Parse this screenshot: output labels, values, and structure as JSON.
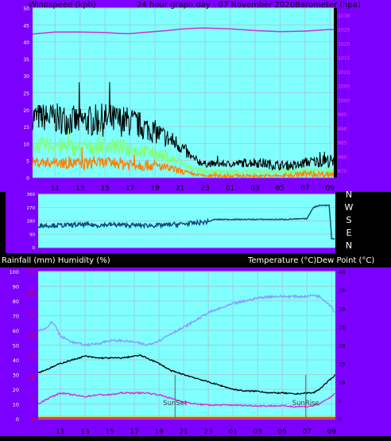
{
  "colors": {
    "bg": "#000000",
    "side": "#7c00ff",
    "plot": "#80ffff",
    "grid": "#9fcfd8",
    "wind_gust": "#000000",
    "wind_avg": "#80ff80",
    "wind_dir_range": "#ff8000",
    "barometer": "#d030d0",
    "direction": "#104878",
    "humidity": "#8898ff",
    "temperature": "#000000",
    "dewpoint": "#e020e0",
    "rain": "#ff0000",
    "axis_text_white": "#ffffff",
    "axis_text_pink": "#ff40ff",
    "axis_text_red": "#ff0000"
  },
  "chart_data": [
    {
      "type": "line",
      "id": "wind-baro",
      "title": "24 hour graph day : 07 November 2020",
      "left_title": "Windspeed (kph)",
      "right_title": "Barometer (hpa)",
      "x_ticks": [
        "11",
        "13",
        "15",
        "17",
        "19",
        "21",
        "23",
        "01",
        "03",
        "05",
        "07",
        "09"
      ],
      "x_hours": [
        11,
        13,
        15,
        17,
        19,
        21,
        23,
        25,
        27,
        29,
        31,
        33
      ],
      "x_range": [
        9.2,
        33.3
      ],
      "left_ticks": [
        0,
        5,
        10,
        15,
        20,
        25,
        30,
        35,
        40,
        45,
        50
      ],
      "left_range": [
        0,
        50
      ],
      "right_ticks": [
        975,
        980,
        985,
        990,
        995,
        1000,
        1005,
        1010,
        1015,
        1020,
        1025,
        1030
      ],
      "right_range": [
        972.5,
        1032.5
      ],
      "barometer": {
        "hours": [
          9.2,
          11,
          13,
          15,
          16.5,
          17,
          18,
          20,
          21,
          22,
          23,
          25,
          27,
          29,
          31,
          33,
          33.3
        ],
        "values": [
          1023.3,
          1024,
          1024,
          1023.8,
          1023.4,
          1023.4,
          1023.8,
          1024.5,
          1025,
          1025.3,
          1025.4,
          1025.1,
          1024.5,
          1024.1,
          1024.3,
          1024.9,
          1024.8
        ]
      },
      "gust_envelope": {
        "hours": [
          9.2,
          11,
          13,
          15,
          17,
          19,
          21,
          22,
          23,
          25,
          27,
          29,
          30.5,
          31,
          33,
          33.3
        ],
        "base": [
          14,
          13,
          12,
          12,
          12,
          10,
          7,
          4,
          3,
          3,
          3,
          2,
          2,
          3,
          3,
          2
        ],
        "amp": [
          8,
          9,
          9,
          10,
          9,
          7,
          5,
          3,
          2,
          2,
          3,
          3,
          3,
          3,
          4,
          4
        ]
      },
      "avg_envelope": {
        "hours": [
          9.2,
          11,
          13,
          15,
          17,
          19,
          21,
          22,
          23,
          25,
          27,
          29,
          31,
          33,
          33.3
        ],
        "base": [
          7,
          7,
          6,
          7,
          6,
          5,
          3,
          1.5,
          1,
          1,
          1,
          1,
          1,
          1,
          1
        ],
        "amp": [
          5,
          5,
          5,
          5,
          5,
          4,
          3,
          2,
          1.5,
          1.5,
          1.5,
          1.5,
          2,
          2,
          2
        ]
      },
      "dir_range_envelope": {
        "hours": [
          9.2,
          11,
          13,
          15,
          17,
          19,
          21,
          22,
          23,
          25,
          27,
          29,
          31,
          33,
          33.3
        ],
        "base": [
          3,
          3,
          2,
          3,
          2,
          2,
          1,
          0.5,
          0,
          0,
          0,
          0,
          0,
          0,
          0
        ],
        "amp": [
          3,
          3,
          4,
          3,
          4,
          3,
          2,
          1,
          1,
          1,
          1,
          1,
          2,
          2,
          2
        ]
      }
    },
    {
      "type": "line",
      "id": "direction",
      "x_range": [
        9.2,
        33.3
      ],
      "left_ticks": [
        0,
        90,
        180,
        270,
        360
      ],
      "right_labels": [
        "N",
        "W",
        "S",
        "E",
        "N"
      ],
      "y_range": [
        0,
        360
      ],
      "series": [
        {
          "hours": [
            9.2,
            11,
            13,
            14,
            15,
            17,
            19,
            21,
            22,
            22.5,
            23,
            23.5,
            25,
            27,
            28,
            29,
            31,
            31.5,
            32,
            32.8,
            33,
            33.3
          ],
          "values": [
            150,
            150,
            155,
            150,
            155,
            150,
            150,
            160,
            165,
            170,
            175,
            190,
            190,
            190,
            190,
            190,
            195,
            270,
            285,
            285,
            60,
            55
          ]
        }
      ]
    },
    {
      "type": "line",
      "id": "temp-hum",
      "left_title": "Rainfall (mm)  Humidity (%)",
      "right_title": "Temperature (°C)Dew Point (°C)",
      "x_ticks": [
        "11",
        "13",
        "15",
        "17",
        "19",
        "21",
        "23",
        "01",
        "03",
        "05",
        "07",
        "09"
      ],
      "x_hours": [
        11,
        13,
        15,
        17,
        19,
        21,
        23,
        25,
        27,
        29,
        31,
        33
      ],
      "x_range": [
        9.2,
        33.3
      ],
      "humidity_ticks": [
        0,
        10,
        20,
        30,
        40,
        50,
        60,
        70,
        80,
        90,
        100
      ],
      "rain_ticks": [
        0,
        5,
        10,
        15,
        20,
        25,
        30,
        35
      ],
      "rain_range": [
        0,
        35
      ],
      "temp_ticks": [
        0,
        5,
        10,
        15,
        20,
        25,
        30,
        35,
        40
      ],
      "temp_range": [
        0,
        40
      ],
      "annotations": [
        {
          "text": "SunSet",
          "hour": 20.3
        },
        {
          "text": "SunRise",
          "hour": 30.9
        }
      ],
      "humidity": {
        "hours": [
          9.2,
          10,
          10.3,
          10.6,
          11,
          12,
          13,
          14,
          15,
          16,
          17,
          18,
          19,
          20,
          21,
          22,
          23,
          24,
          25,
          26,
          27,
          28,
          29,
          30,
          31,
          31.5,
          32,
          32.5,
          33,
          33.3
        ],
        "values": [
          60,
          62,
          66,
          63,
          56,
          52,
          50,
          51,
          53,
          53,
          52,
          50,
          53,
          58,
          62,
          67,
          72,
          75,
          78,
          80,
          82,
          83,
          83,
          83,
          83,
          84,
          83,
          80,
          76,
          72
        ]
      },
      "temperature": {
        "hours": [
          9.2,
          10,
          11,
          12,
          13,
          14,
          15,
          16,
          17,
          17.5,
          18,
          19,
          20,
          21,
          22,
          23,
          24,
          25,
          26,
          27,
          28,
          29,
          30,
          31,
          31.5,
          32,
          32.5,
          33,
          33.3
        ],
        "values": [
          12.5,
          13.5,
          15,
          16,
          17,
          16.5,
          16.5,
          16.5,
          17,
          17.2,
          16.5,
          15,
          13,
          12,
          11,
          10,
          9,
          8,
          7.5,
          7.5,
          7,
          7,
          6.7,
          7,
          7,
          8,
          9.5,
          11,
          12
        ]
      },
      "dewpoint": {
        "hours": [
          9.2,
          10,
          11,
          12,
          13,
          14,
          15,
          16,
          17,
          18,
          19,
          20,
          21,
          22,
          23,
          25,
          27,
          29,
          30,
          31,
          31.5,
          32,
          32.5,
          33,
          33.3
        ],
        "values": [
          4,
          5.5,
          7,
          6.5,
          6,
          6.5,
          6.5,
          7,
          7,
          7,
          6.5,
          5.5,
          4.5,
          4,
          3.7,
          3.7,
          3.5,
          3.5,
          3.3,
          3.3,
          3.5,
          4,
          5,
          6,
          7
        ]
      },
      "rainfall": {
        "hours": [
          9.2,
          33.3
        ],
        "values": [
          0,
          0
        ]
      }
    }
  ]
}
